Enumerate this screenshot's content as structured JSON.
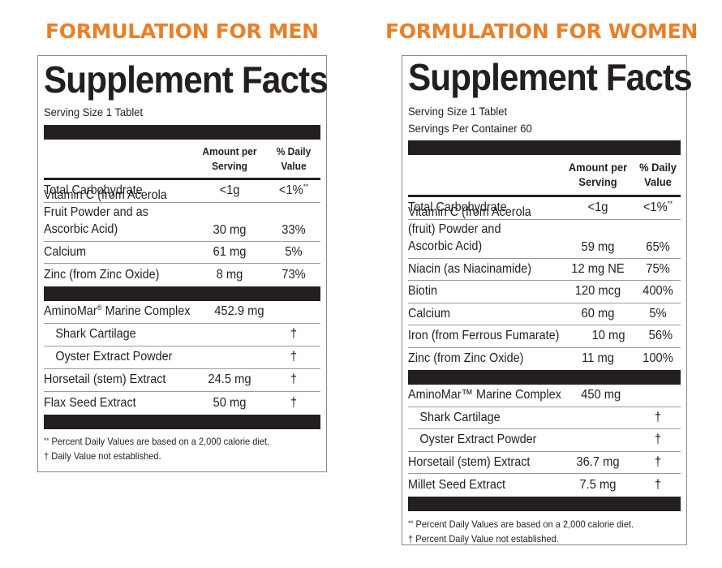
{
  "men": {
    "heading": "FORMULATION FOR MEN",
    "title": "Supplement Facts",
    "serving_size": "Serving Size 1 Tablet",
    "col_amount": [
      "Amount per",
      "Serving"
    ],
    "col_dv": [
      "% Daily",
      "Value"
    ],
    "nutrients": [
      {
        "name": "Total Carbohydrate",
        "amount": "<1g",
        "dv": "<1%",
        "dv_mark": "**"
      },
      {
        "name": "Vitamin C (from Acerola Fruit Powder and as Ascorbic Acid)",
        "amount": "30 mg",
        "dv": "33%"
      },
      {
        "name": "Calcium",
        "amount": "61 mg",
        "dv": "5%"
      },
      {
        "name": "Zinc (from Zinc Oxide)",
        "amount": "8 mg",
        "dv": "73%"
      }
    ],
    "blend": {
      "name": "AminoMar",
      "mark": "®",
      "suffix": " Marine Complex",
      "amount": "452.9 mg"
    },
    "others": [
      {
        "name": "Shark Cartilage",
        "amount": "",
        "dv": "†",
        "indent": true
      },
      {
        "name": "Oyster Extract Powder",
        "amount": "",
        "dv": "†",
        "indent": true
      },
      {
        "name": "Horsetail (stem) Extract",
        "amount": "24.5 mg",
        "dv": "†"
      },
      {
        "name": "Flax Seed Extract",
        "amount": "50 mg",
        "dv": "†"
      }
    ],
    "footnotes": [
      {
        "mark": "**",
        "text": " Percent Daily Values are based on a 2,000 calorie diet."
      },
      {
        "mark": "†",
        "text": " Daily Value not established."
      }
    ]
  },
  "women": {
    "heading": "FORMULATION FOR WOMEN",
    "title": "Supplement Facts",
    "serving_size": "Serving Size 1 Tablet",
    "servings_per_container": "Servings Per Container 60",
    "col_amount": [
      "Amount per",
      "Serving"
    ],
    "col_dv": [
      "% Daily",
      "Value"
    ],
    "nutrients": [
      {
        "name": "Total Carbohydrate",
        "amount": "<1g",
        "dv": "<1%",
        "dv_mark": "**"
      },
      {
        "name": "Vitamin C (from Acerola (fruit) Powder and Ascorbic Acid)",
        "amount": "59 mg",
        "dv": "65%"
      },
      {
        "name": "Niacin (as Niacinamide)",
        "amount": "12 mg NE",
        "dv": "75%"
      },
      {
        "name": "Biotin",
        "amount": "120 mcg",
        "dv": "400%"
      },
      {
        "name": "Calcium",
        "amount": "60 mg",
        "dv": "5%"
      },
      {
        "name": "Iron (from Ferrous Fumarate)",
        "amount": "10 mg",
        "dv": "56%"
      },
      {
        "name": "Zinc (from Zinc Oxide)",
        "amount": "11 mg",
        "dv": "100%"
      }
    ],
    "blend": {
      "name": "AminoMar",
      "mark": "™",
      "suffix": " Marine Complex",
      "amount": "450 mg"
    },
    "others": [
      {
        "name": "Shark Cartilage",
        "amount": "",
        "dv": "†",
        "indent": true
      },
      {
        "name": "Oyster Extract Powder",
        "amount": "",
        "dv": "†",
        "indent": true
      },
      {
        "name": "Horsetail (stem) Extract",
        "amount": "36.7 mg",
        "dv": "†"
      },
      {
        "name": "Millet Seed Extract",
        "amount": "7.5 mg",
        "dv": "†"
      }
    ],
    "footnotes": [
      {
        "mark": "**",
        "text": " Percent Daily Values are based on a 2,000 calorie diet."
      },
      {
        "mark": "†",
        "text": " Percent Daily Value not established."
      }
    ]
  }
}
